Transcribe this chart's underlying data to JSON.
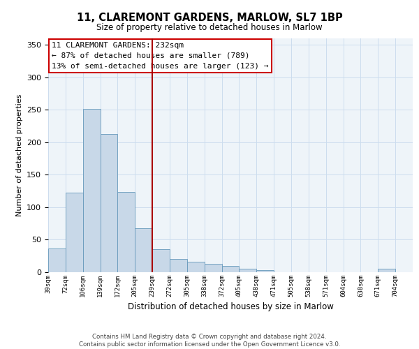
{
  "title": "11, CLAREMONT GARDENS, MARLOW, SL7 1BP",
  "subtitle": "Size of property relative to detached houses in Marlow",
  "xlabel": "Distribution of detached houses by size in Marlow",
  "ylabel": "Number of detached properties",
  "footer_line1": "Contains HM Land Registry data © Crown copyright and database right 2024.",
  "footer_line2": "Contains public sector information licensed under the Open Government Licence v3.0.",
  "bin_labels": [
    "39sqm",
    "72sqm",
    "106sqm",
    "139sqm",
    "172sqm",
    "205sqm",
    "239sqm",
    "272sqm",
    "305sqm",
    "338sqm",
    "372sqm",
    "405sqm",
    "438sqm",
    "471sqm",
    "505sqm",
    "538sqm",
    "571sqm",
    "604sqm",
    "638sqm",
    "671sqm",
    "704sqm"
  ],
  "bar_heights": [
    37,
    123,
    252,
    213,
    124,
    68,
    35,
    20,
    16,
    13,
    10,
    5,
    3,
    0,
    0,
    0,
    0,
    0,
    0,
    5,
    0
  ],
  "bar_color": "#c8d8e8",
  "bar_edge_color": "#6699bb",
  "grid_color": "#ccddee",
  "vline_x": 6,
  "vline_color": "#aa0000",
  "annotation_line1": "11 CLAREMONT GARDENS: 232sqm",
  "annotation_line2": "← 87% of detached houses are smaller (789)",
  "annotation_line3": "13% of semi-detached houses are larger (123) →",
  "annotation_box_color": "#ffffff",
  "annotation_box_edge": "#cc0000",
  "ylim": [
    0,
    360
  ],
  "yticks": [
    0,
    50,
    100,
    150,
    200,
    250,
    300,
    350
  ],
  "background_color": "#ffffff",
  "plot_bg_color": "#eef4f9"
}
